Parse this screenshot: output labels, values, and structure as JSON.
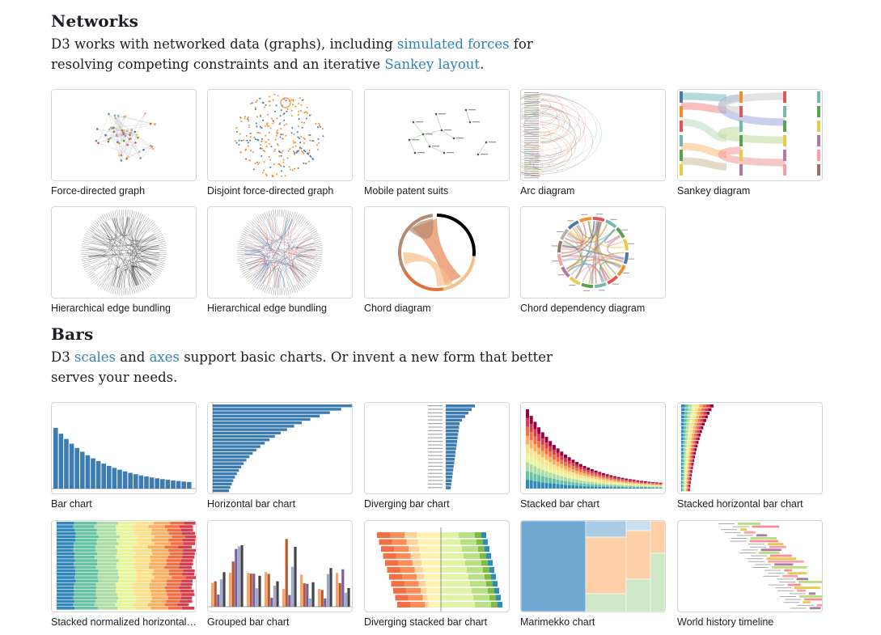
{
  "networks": {
    "title": "Networks",
    "intro": {
      "text1": "D3 works with networked data (graphs), including ",
      "link1": "simulated forces",
      "text2": " for resolving competing constraints and an iterative ",
      "link2": "Sankey layout",
      "text3": "."
    },
    "cards": [
      {
        "caption": "Force-directed graph",
        "thumb": "force-graph-thumbnail"
      },
      {
        "caption": "Disjoint force-directed graph",
        "thumb": "disjoint-force-thumbnail"
      },
      {
        "caption": "Mobile patent suits",
        "thumb": "patent-suits-thumbnail"
      },
      {
        "caption": "Arc diagram",
        "thumb": "arc-diagram-thumbnail"
      },
      {
        "caption": "Sankey diagram",
        "thumb": "sankey-thumbnail"
      },
      {
        "caption": "Hierarchical edge bundling",
        "thumb": "edge-bundling-thumbnail"
      },
      {
        "caption": "Hierarchical edge bundling",
        "thumb": "edge-bundling-colored-thumbnail"
      },
      {
        "caption": "Chord diagram",
        "thumb": "chord-thumbnail"
      },
      {
        "caption": "Chord dependency diagram",
        "thumb": "chord-dependency-thumbnail"
      }
    ]
  },
  "bars": {
    "title": "Bars",
    "intro": {
      "text1": "D3 ",
      "link1": "scales",
      "text2": " and ",
      "link2": "axes",
      "text3": " support basic charts. Or invent a new form that better serves your needs."
    },
    "cards": [
      {
        "caption": "Bar chart",
        "thumb": "bar-chart-thumbnail"
      },
      {
        "caption": "Horizontal bar chart",
        "thumb": "horizontal-bar-thumbnail"
      },
      {
        "caption": "Diverging bar chart",
        "thumb": "diverging-bar-thumbnail"
      },
      {
        "caption": "Stacked bar chart",
        "thumb": "stacked-bar-thumbnail"
      },
      {
        "caption": "Stacked horizontal bar chart",
        "thumb": "stacked-horizontal-thumbnail"
      },
      {
        "caption": "Stacked normalized horizontal bar chart",
        "thumb": "stacked-normalized-thumbnail"
      },
      {
        "caption": "Grouped bar chart",
        "thumb": "grouped-bar-thumbnail"
      },
      {
        "caption": "Diverging stacked bar chart",
        "thumb": "diverging-stacked-thumbnail"
      },
      {
        "caption": "Marimekko chart",
        "thumb": "marimekko-thumbnail"
      },
      {
        "caption": "World history timeline",
        "thumb": "timeline-thumbnail"
      }
    ]
  },
  "colors": {
    "link": "#3182bd",
    "blue": "#3c7cb0",
    "orange": "#f28e2c",
    "tableau": [
      "#4e79a7",
      "#f28e2c",
      "#e15759",
      "#76b7b2",
      "#59a14f",
      "#edc949",
      "#af7aa1",
      "#ff9da7",
      "#9c755f",
      "#bab0ab"
    ],
    "spectral": [
      "#9e0142",
      "#d53e4f",
      "#f46d43",
      "#fdae61",
      "#fee08b",
      "#e6f598",
      "#abdda4",
      "#66c2a5",
      "#3288bd"
    ]
  }
}
